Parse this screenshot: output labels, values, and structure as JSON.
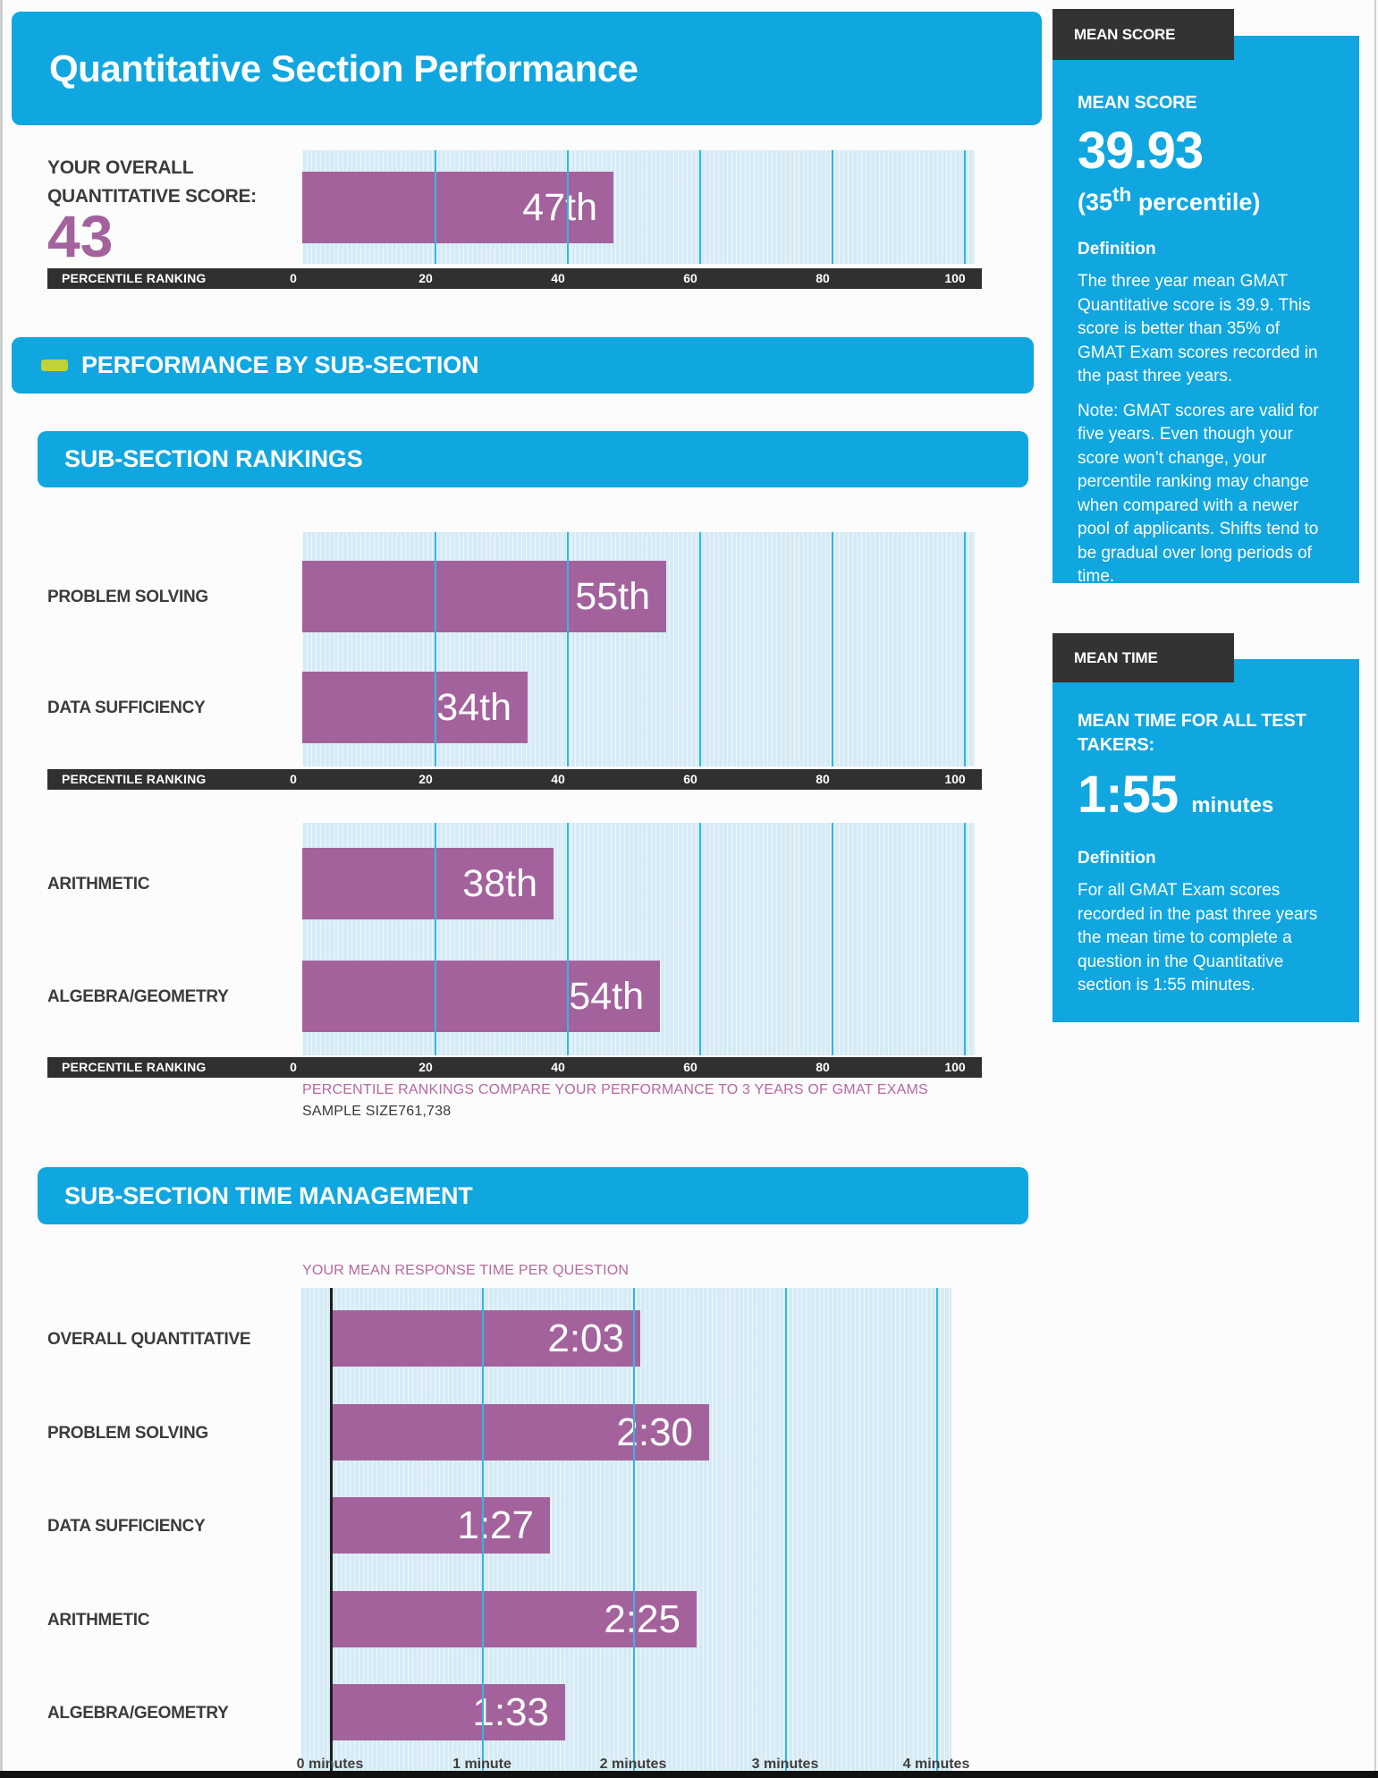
{
  "header": {
    "title": "Quantitative Section Performance"
  },
  "overall": {
    "label_line1": "YOUR OVERALL",
    "label_line2": "QUANTITATIVE SCORE:",
    "score": "43",
    "percentile_value": 47,
    "percentile_display": "47th"
  },
  "axis": {
    "label": "PERCENTILE RANKING",
    "ticks": [
      "0",
      "20",
      "40",
      "60",
      "80",
      "100"
    ]
  },
  "banners": {
    "performance": "PERFORMANCE BY SUB-SECTION",
    "rankings": "SUB-SECTION RANKINGS",
    "time": "SUB-SECTION TIME MANAGEMENT"
  },
  "rankings": {
    "chart1": {
      "rows": [
        {
          "label": "PROBLEM SOLVING",
          "value": 55,
          "display": "55th"
        },
        {
          "label": "DATA SUFFICIENCY",
          "value": 34,
          "display": "34th"
        }
      ]
    },
    "chart2": {
      "rows": [
        {
          "label": "ARITHMETIC",
          "value": 38,
          "display": "38th"
        },
        {
          "label": "ALGEBRA/GEOMETRY",
          "value": 54,
          "display": "54th"
        }
      ]
    },
    "note": "PERCENTILE RANKINGS COMPARE YOUR PERFORMANCE TO 3 YEARS OF GMAT EXAMS",
    "sample_size": "SAMPLE SIZE761,738"
  },
  "time": {
    "title": "YOUR MEAN RESPONSE TIME PER QUESTION",
    "rows": [
      {
        "label": "OVERALL QUANTITATIVE",
        "seconds": 123,
        "display": "2:03"
      },
      {
        "label": "PROBLEM SOLVING",
        "seconds": 150,
        "display": "2:30"
      },
      {
        "label": "DATA SUFFICIENCY",
        "seconds": 87,
        "display": "1:27"
      },
      {
        "label": "ARITHMETIC",
        "seconds": 145,
        "display": "2:25"
      },
      {
        "label": "ALGEBRA/GEOMETRY",
        "seconds": 93,
        "display": "1:33"
      }
    ],
    "ticks": [
      "0 minutes",
      "1 minute",
      "2 minutes",
      "3 minutes",
      "4 minutes"
    ]
  },
  "sidebar": {
    "mean_score": {
      "tab": "MEAN SCORE",
      "heading": "MEAN SCORE",
      "value": "39.93",
      "percentile_open": "(35",
      "percentile_sup": "th",
      "percentile_rest": " percentile)",
      "definition_label": "Definition",
      "body1": "The three year mean GMAT Quantitative score is 39.9. This score is better than 35% of GMAT Exam scores recorded in the past three years.",
      "body2": "Note: GMAT scores are valid for five years. Even though your score won’t change, your percentile ranking may change when compared with a newer pool of applicants. Shifts tend to be gradual over long periods of time."
    },
    "mean_time": {
      "tab": "MEAN TIME",
      "heading": "MEAN TIME FOR ALL TEST TAKERS:",
      "value": "1:55",
      "unit": "minutes",
      "definition_label": "Definition",
      "body": "For all GMAT Exam scores recorded in the past three years the mean time to complete a question in the Quantitative section is 1:55 minutes."
    }
  },
  "colors": {
    "accent_blue": "#10a6e0",
    "bar_purple": "#a4629d",
    "ribbon_dark": "#303030",
    "grid_cyan": "#30b7e8",
    "lime_dash": "#bfd23a",
    "note_pink": "#b5689f"
  },
  "chart_data": [
    {
      "type": "bar",
      "orientation": "horizontal",
      "title": "YOUR OVERALL QUANTITATIVE SCORE: 43",
      "categories": [
        "OVERALL QUANTITATIVE SCORE"
      ],
      "values": [
        47
      ],
      "value_labels": [
        "47th"
      ],
      "xlabel": "PERCENTILE RANKING",
      "xlim": [
        0,
        100
      ],
      "xticks": [
        0,
        20,
        40,
        60,
        80,
        100
      ],
      "grid": true,
      "legend_position": "none"
    },
    {
      "type": "bar",
      "orientation": "horizontal",
      "title": "SUB-SECTION RANKINGS",
      "categories": [
        "PROBLEM SOLVING",
        "DATA SUFFICIENCY",
        "ARITHMETIC",
        "ALGEBRA/GEOMETRY"
      ],
      "values": [
        55,
        34,
        38,
        54
      ],
      "value_labels": [
        "55th",
        "34th",
        "38th",
        "54th"
      ],
      "xlabel": "PERCENTILE RANKING",
      "xlim": [
        0,
        100
      ],
      "xticks": [
        0,
        20,
        40,
        60,
        80,
        100
      ],
      "grid": true,
      "annotations": [
        "PERCENTILE RANKINGS COMPARE YOUR PERFORMANCE TO 3 YEARS OF GMAT EXAMS",
        "SAMPLE SIZE761,738"
      ],
      "legend_position": "none"
    },
    {
      "type": "bar",
      "orientation": "horizontal",
      "title": "SUB-SECTION TIME MANAGEMENT",
      "subtitle": "YOUR MEAN RESPONSE TIME PER QUESTION",
      "categories": [
        "OVERALL QUANTITATIVE",
        "PROBLEM SOLVING",
        "DATA SUFFICIENCY",
        "ARITHMETIC",
        "ALGEBRA/GEOMETRY"
      ],
      "values_seconds": [
        123,
        150,
        87,
        145,
        93
      ],
      "value_labels": [
        "2:03",
        "2:30",
        "1:27",
        "2:25",
        "1:33"
      ],
      "xlabel": "minutes",
      "xlim_minutes": [
        0,
        4
      ],
      "xticks": [
        "0 minutes",
        "1 minute",
        "2 minutes",
        "3 minutes",
        "4 minutes"
      ],
      "grid": true,
      "legend_position": "none"
    }
  ]
}
